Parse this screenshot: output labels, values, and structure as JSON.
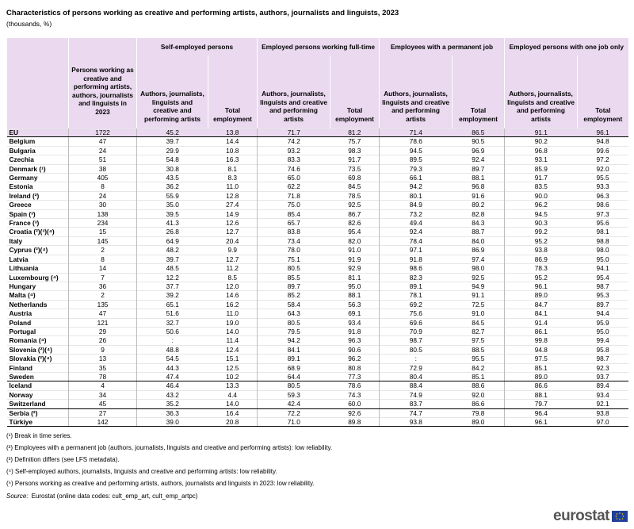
{
  "header": {
    "title": "Characteristics of persons working as creative and performing artists, authors, journalists and linguists, 2023",
    "subtitle": "(thousands, %)"
  },
  "table": {
    "persons_header": "Persons working as creative and performing artists, authors, journalists and linguists in 2023",
    "group_headers": [
      "Self-employed persons",
      "Employed persons working full-time",
      "Employees with a permanent job",
      "Employed persons with one job only"
    ],
    "column_headers": [
      "Authors, journalists, linguists and creative and performing artists",
      "Total employment",
      "Authors, journalists, linguists and creative and performing artists",
      "Total employment",
      "Authors, journalists, linguists and creative and performing artists",
      "Total employment",
      "Authors, journalists, linguists and creative and performing artists",
      "Total employment"
    ],
    "rows": [
      [
        "EU",
        "1722",
        "45.2",
        "13.8",
        "71.7",
        "81.2",
        "71.4",
        "86.5",
        "91.1",
        "96.1"
      ],
      [
        "Belgium",
        "47",
        "39.7",
        "14.4",
        "74.2",
        "75.7",
        "78.6",
        "90.5",
        "90.2",
        "94.8"
      ],
      [
        "Bulgaria",
        "24",
        "29.9",
        "10.8",
        "93.2",
        "98.3",
        "94.5",
        "96.9",
        "96.8",
        "99.6"
      ],
      [
        "Czechia",
        "51",
        "54.8",
        "16.3",
        "83.3",
        "91.7",
        "89.5",
        "92.4",
        "93.1",
        "97.2"
      ],
      [
        "Denmark (¹)",
        "38",
        "30.8",
        "8.1",
        "74.6",
        "73.5",
        "79.3",
        "89.7",
        "85.9",
        "92.0"
      ],
      [
        "Germany",
        "405",
        "43.5",
        "8.3",
        "65.0",
        "69.8",
        "66.1",
        "88.1",
        "91.7",
        "95.5"
      ],
      [
        "Estonia",
        "8",
        "36.2",
        "11.0",
        "62.2",
        "84.5",
        "94.2",
        "96.8",
        "83.5",
        "93.3"
      ],
      [
        "Ireland (²)",
        "24",
        "55.9",
        "12.8",
        "71.8",
        "78.5",
        "80.1",
        "91.6",
        "90.0",
        "96.3"
      ],
      [
        "Greece",
        "30",
        "35.0",
        "27.4",
        "75.0",
        "92.5",
        "84.9",
        "89.2",
        "96.2",
        "98.6"
      ],
      [
        "Spain (³)",
        "138",
        "39.5",
        "14.9",
        "85.4",
        "86.7",
        "73.2",
        "82.8",
        "94.5",
        "97.3"
      ],
      [
        "France (³)",
        "234",
        "41.3",
        "12.6",
        "65.7",
        "82.6",
        "49.4",
        "84.3",
        "90.3",
        "95.6"
      ],
      [
        "Croatia (²)(³)(⁴)",
        "15",
        "26.8",
        "12.7",
        "83.8",
        "95.4",
        "92.4",
        "88.7",
        "99.2",
        "98.1"
      ],
      [
        "Italy",
        "145",
        "64.9",
        "20.4",
        "73.4",
        "82.0",
        "78.4",
        "84.0",
        "95.2",
        "98.8"
      ],
      [
        "Cyprus (²)(⁴)",
        "2",
        "48.2",
        "9.9",
        "78.0",
        "91.0",
        "97.1",
        "86.9",
        "93.8",
        "98.0"
      ],
      [
        "Latvia",
        "8",
        "39.7",
        "12.7",
        "75.1",
        "91.9",
        "91.8",
        "97.4",
        "86.9",
        "95.0"
      ],
      [
        "Lithuania",
        "14",
        "48.5",
        "11.2",
        "80.5",
        "92.9",
        "98.6",
        "98.0",
        "78.3",
        "94.1"
      ],
      [
        "Luxembourg (⁴)",
        "7",
        "12.2",
        "8.5",
        "85.5",
        "81.1",
        "82.3",
        "92.5",
        "95.2",
        "95.4"
      ],
      [
        "Hungary",
        "36",
        "37.7",
        "12.0",
        "89.7",
        "95.0",
        "89.1",
        "94.9",
        "96.1",
        "98.7"
      ],
      [
        "Malta (⁴)",
        "2",
        "39.2",
        "14.6",
        "85.2",
        "88.1",
        "78.1",
        "91.1",
        "89.0",
        "95.3"
      ],
      [
        "Netherlands",
        "135",
        "65.1",
        "16.2",
        "58.4",
        "56.3",
        "69.2",
        "72.5",
        "84.7",
        "89.7"
      ],
      [
        "Austria",
        "47",
        "51.6",
        "11.0",
        "64.3",
        "69.1",
        "75.6",
        "91.0",
        "84.1",
        "94.4"
      ],
      [
        "Poland",
        "121",
        "32.7",
        "19.0",
        "80.5",
        "93.4",
        "69.6",
        "84.5",
        "91.4",
        "95.9"
      ],
      [
        "Portugal",
        "29",
        "50.6",
        "14.0",
        "79.5",
        "91.8",
        "70.9",
        "82.7",
        "86.1",
        "95.0"
      ],
      [
        "Romania (⁴)",
        "26",
        ":",
        "11.4",
        "94.2",
        "96.3",
        "98.7",
        "97.5",
        "99.8",
        "99.4"
      ],
      [
        "Slovenia (²)(⁴)",
        "9",
        "48.8",
        "12.4",
        "84.1",
        "90.6",
        "80.5",
        "88.5",
        "94.8",
        "95.8"
      ],
      [
        "Slovakia (²)(⁴)",
        "13",
        "54.5",
        "15.1",
        "89.1",
        "96.2",
        ":",
        "95.5",
        "97.5",
        "98.7"
      ],
      [
        "Finland",
        "35",
        "44.3",
        "12.5",
        "68.9",
        "80.8",
        "72.9",
        "84.2",
        "85.1",
        "92.3"
      ],
      [
        "Sweden",
        "78",
        "47.4",
        "10.2",
        "64.4",
        "77.3",
        "80.4",
        "85.1",
        "89.0",
        "93.7"
      ],
      [
        "Iceland",
        "4",
        "46.4",
        "13.3",
        "80.5",
        "78.6",
        "88.4",
        "88.6",
        "86.6",
        "89.4"
      ],
      [
        "Norway",
        "34",
        "43.2",
        "4.4",
        "59.3",
        "74.3",
        "74.9",
        "92.0",
        "88.1",
        "93.4"
      ],
      [
        "Switzerland",
        "45",
        "35.2",
        "14.0",
        "42.4",
        "60.0",
        "83.7",
        "86.6",
        "79.7",
        "92.1"
      ],
      [
        "Serbia (²)",
        "27",
        "36.3",
        "16.4",
        "72.2",
        "92.6",
        "74.7",
        "79.8",
        "96.4",
        "93.8"
      ],
      [
        "Türkiye",
        "142",
        "39.0",
        "20.8",
        "71.0",
        "89.8",
        "93.8",
        "89.0",
        "96.1",
        "97.0"
      ]
    ]
  },
  "footnotes": [
    "(¹) Break in time series.",
    "(²) Employees with a permanent job (authors, journalists, linguists and creative and performing artists): low reliability.",
    "(³) Definition differs (see LFS metadata).",
    "(⁴) Self-employed authors, journalists, linguists and creative and performing artists: low reliability.",
    "(⁵) Persons working as creative and performing artists, authors, journalists and linguists in 2023: low reliability."
  ],
  "source": {
    "label": "Source:",
    "text": "Eurostat (online data codes: cult_emp_art, cult_emp_artpc)"
  },
  "logo": "eurostat"
}
